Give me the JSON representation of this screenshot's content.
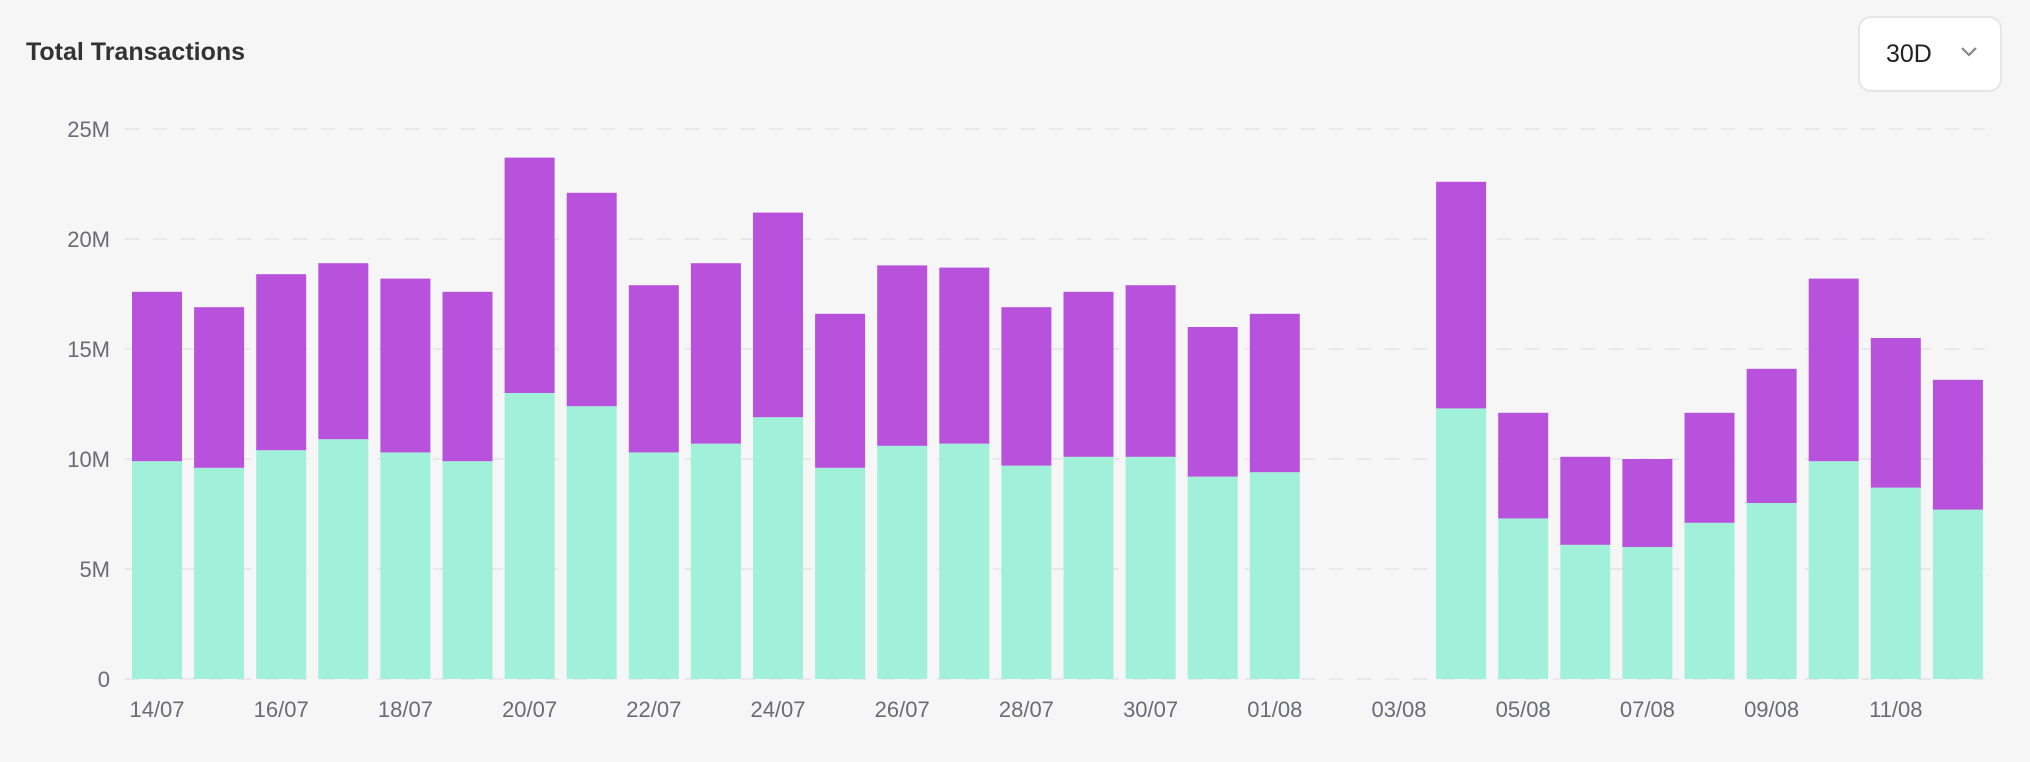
{
  "header": {
    "title": "Total Transactions"
  },
  "range_select": {
    "value": "30D",
    "icon": "chevron-down-icon"
  },
  "chart_data": {
    "type": "bar",
    "stacked": true,
    "title": "Total Transactions",
    "categories": [
      "14/07",
      "15/07",
      "16/07",
      "17/07",
      "18/07",
      "19/07",
      "20/07",
      "21/07",
      "22/07",
      "23/07",
      "24/07",
      "25/07",
      "26/07",
      "27/07",
      "28/07",
      "29/07",
      "30/07",
      "31/07",
      "01/08",
      "02/08",
      "03/08",
      "04/08",
      "05/08",
      "06/08",
      "07/08",
      "08/08",
      "09/08",
      "10/08",
      "11/08",
      "12/08"
    ],
    "x_tick_labels": [
      "14/07",
      "16/07",
      "18/07",
      "20/07",
      "22/07",
      "24/07",
      "26/07",
      "28/07",
      "30/07",
      "01/08",
      "03/08",
      "05/08",
      "07/08",
      "09/08",
      "11/08"
    ],
    "y_tick_labels": [
      "0",
      "5M",
      "10M",
      "15M",
      "20M",
      "25M"
    ],
    "ylim": [
      0,
      25000000
    ],
    "grid": true,
    "series": [
      {
        "color": "#a0f0da",
        "values": [
          9.9,
          9.6,
          10.4,
          10.9,
          10.3,
          9.9,
          13.0,
          12.4,
          10.3,
          10.7,
          11.9,
          9.6,
          10.6,
          10.7,
          9.7,
          10.1,
          10.1,
          9.2,
          9.4,
          0,
          0,
          12.3,
          7.3,
          6.1,
          6.0,
          7.1,
          8.0,
          9.9,
          8.7,
          7.7
        ]
      },
      {
        "color": "#b851db",
        "values": [
          7.7,
          7.3,
          8.0,
          8.0,
          7.9,
          7.7,
          10.7,
          9.7,
          7.6,
          8.2,
          9.3,
          7.0,
          8.2,
          8.0,
          7.2,
          7.5,
          7.8,
          6.8,
          7.2,
          0,
          0,
          10.3,
          4.8,
          4.0,
          4.0,
          5.0,
          6.1,
          8.3,
          6.8,
          5.9
        ]
      }
    ],
    "value_unit": "millions"
  }
}
